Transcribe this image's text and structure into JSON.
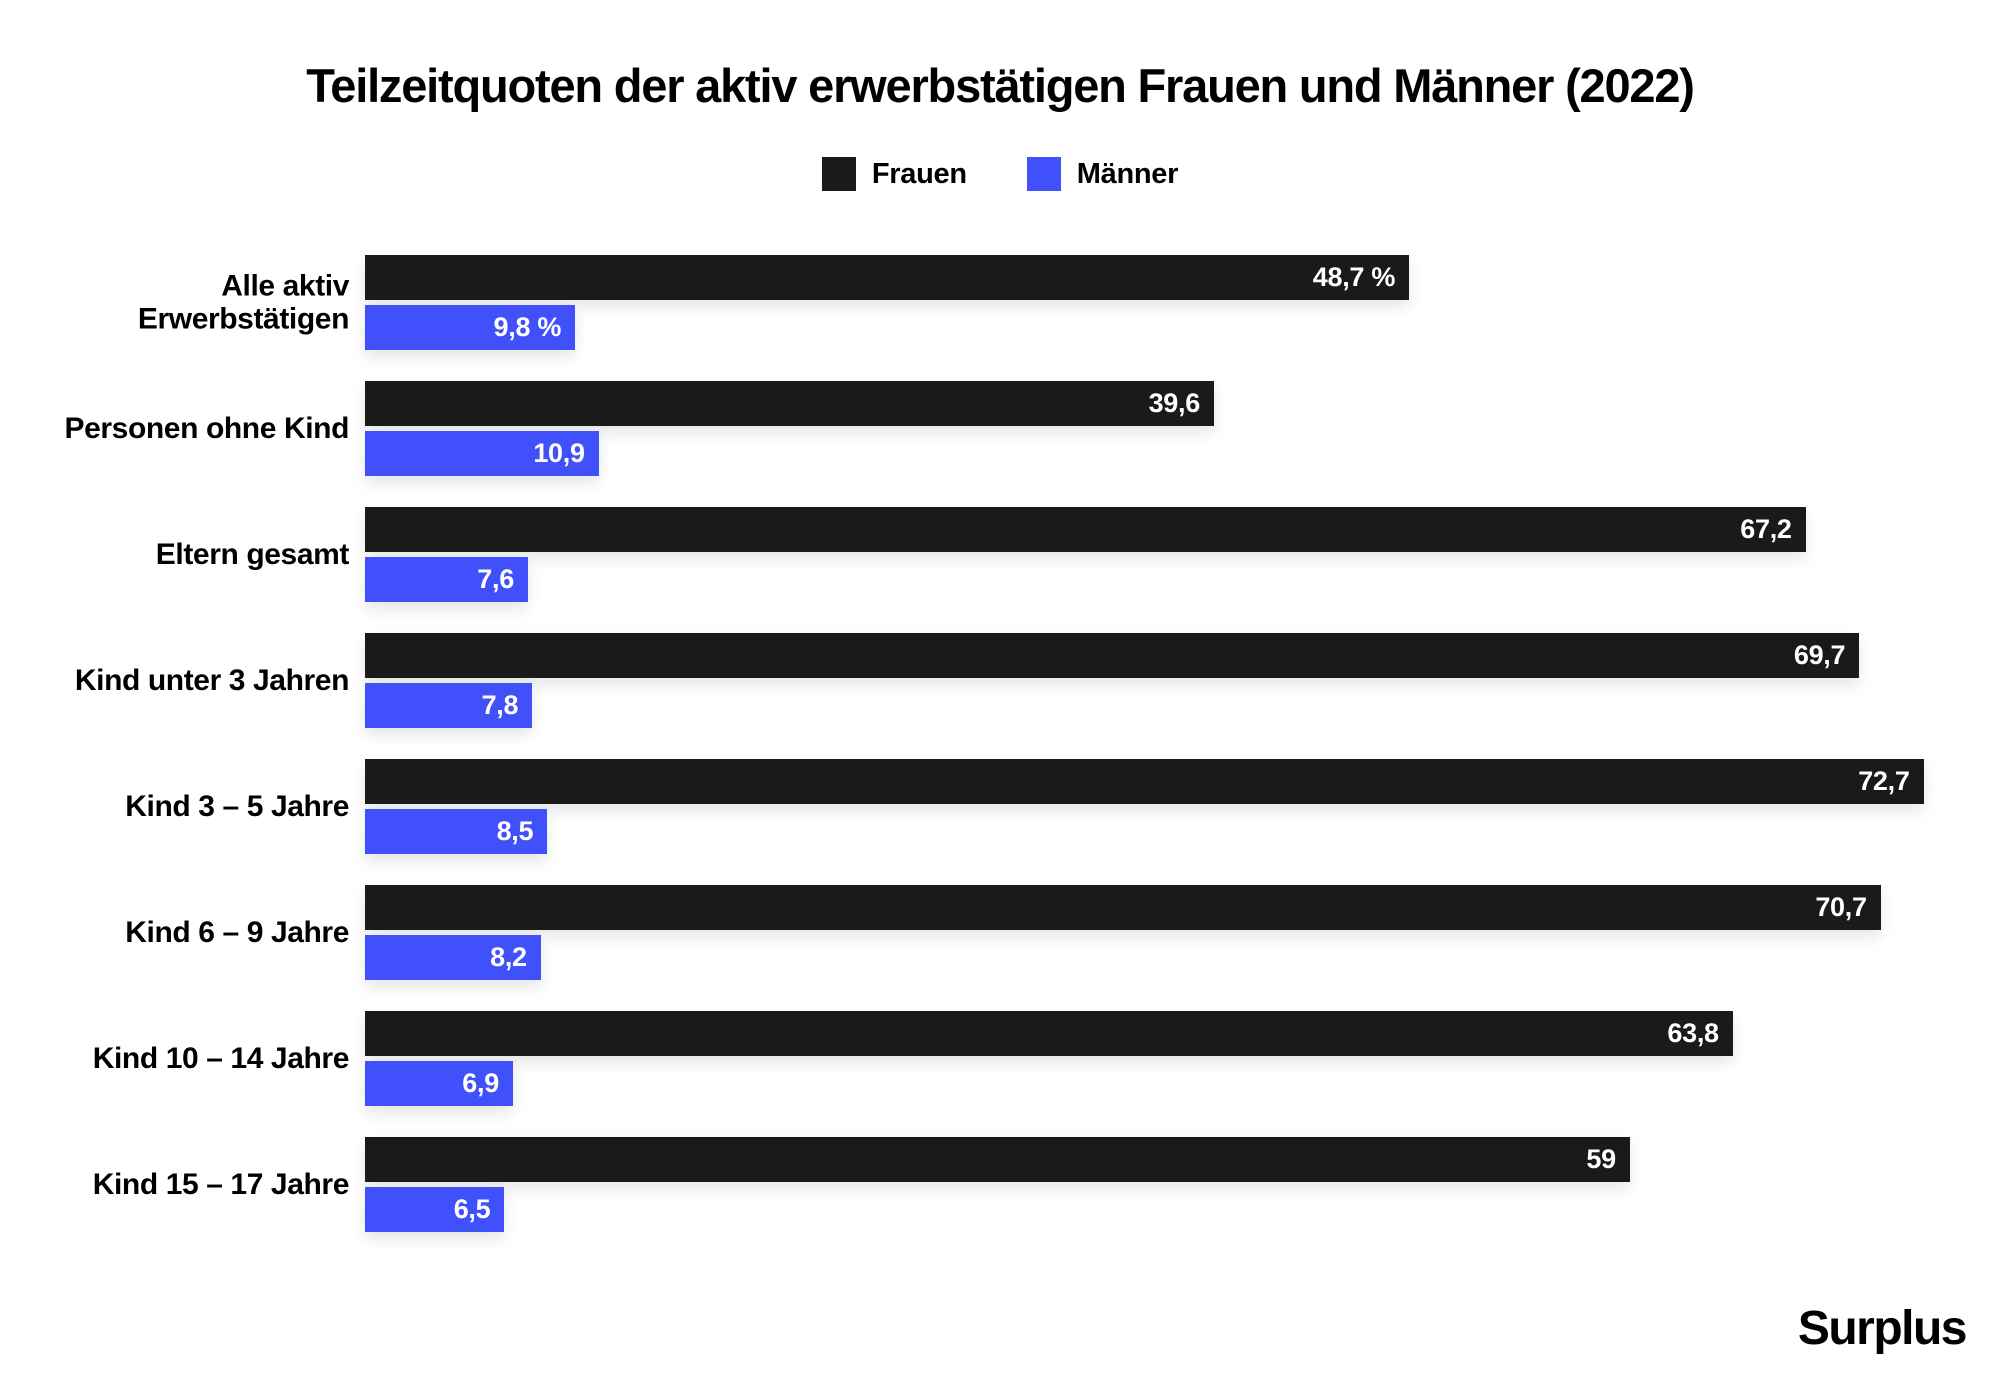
{
  "title": "Teilzeitquoten der aktiv erwerbstätigen Frauen und Männer (2022)",
  "logo_text": "Surplus",
  "legend": [
    {
      "label": "Frauen",
      "color": "#1a1a1a"
    },
    {
      "label": "Männer",
      "color": "#4050fa"
    }
  ],
  "colors": {
    "frauen": "#1a1a1a",
    "maenner": "#4050fa",
    "background": "#ffffff",
    "bar_value_text": "#ffffff"
  },
  "chart_data": {
    "type": "bar",
    "orientation": "horizontal",
    "title": "Teilzeitquoten der aktiv erwerbstätigen Frauen und Männer (2022)",
    "unit": "%",
    "grid": false,
    "legend_position": "top-center",
    "xlim": [
      0,
      74.4
    ],
    "categories": [
      "Alle aktiv Erwerbstätigen",
      "Personen ohne Kind",
      "Eltern gesamt",
      "Kind unter 3 Jahren",
      "Kind 3 – 5 Jahre",
      "Kind 6 – 9 Jahre",
      "Kind 10 – 14 Jahre",
      "Kind 15 – 17 Jahre"
    ],
    "series": [
      {
        "name": "Frauen",
        "color": "#1a1a1a",
        "values": [
          48.7,
          39.6,
          67.2,
          69.7,
          72.7,
          70.7,
          63.8,
          59
        ],
        "labels": [
          "48,7 %",
          "39,6",
          "67,2",
          "69,7",
          "72,7",
          "70,7",
          "63,8",
          "59"
        ]
      },
      {
        "name": "Männer",
        "color": "#4050fa",
        "values": [
          9.8,
          10.9,
          7.6,
          7.8,
          8.5,
          8.2,
          6.9,
          6.5
        ],
        "labels": [
          "9,8 %",
          "10,9",
          "7,6",
          "7,8",
          "8,5",
          "8,2",
          "6,9",
          "6,5"
        ]
      }
    ]
  }
}
